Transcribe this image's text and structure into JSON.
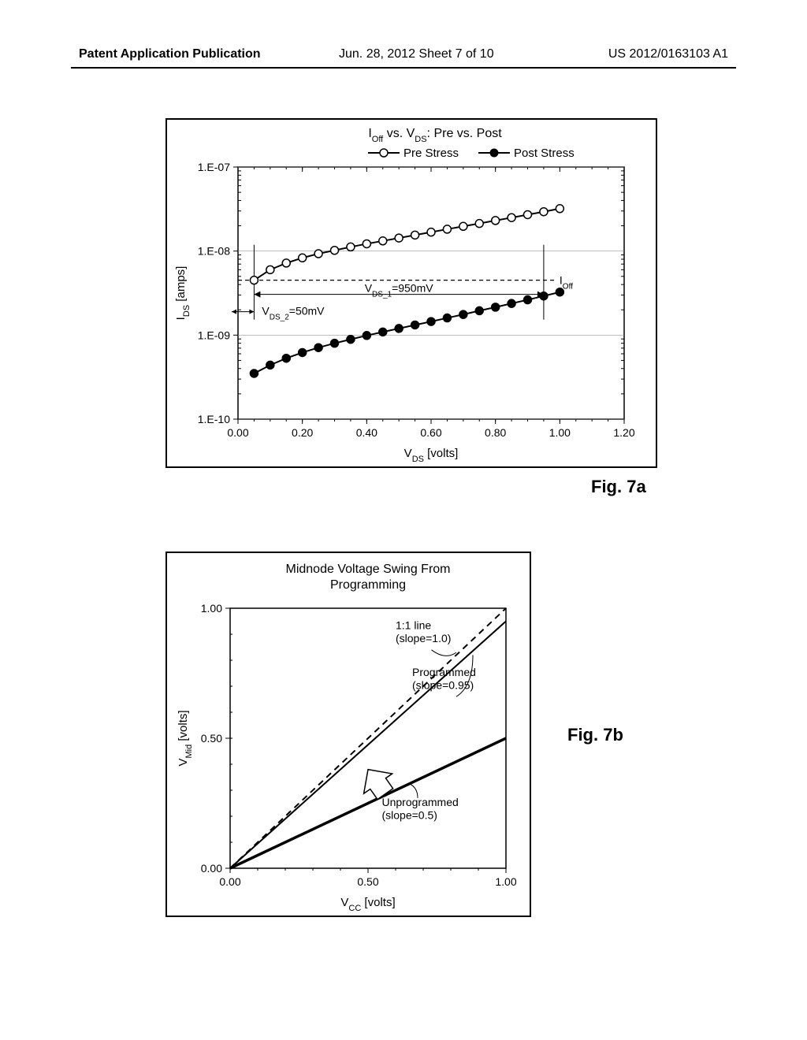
{
  "header": {
    "left": "Patent Application Publication",
    "center": "Jun. 28, 2012  Sheet 7 of 10",
    "right": "US 2012/0163103 A1"
  },
  "fig7a": {
    "label": "Fig. 7a",
    "title": "I_Off vs. V_DS: Pre vs. Post",
    "legend_pre": "Pre Stress",
    "legend_post": "Post Stress",
    "xlabel": "V_DS [volts]",
    "ylabel": "I_DS [amps]",
    "xlim": [
      0,
      1.2
    ],
    "xticks": [
      0.0,
      0.2,
      0.4,
      0.6,
      0.8,
      1.0,
      1.2
    ],
    "yticks": [
      "1.E-10",
      "1.E-09",
      "1.E-08",
      "1.E-07"
    ],
    "ylim_log": [
      -10,
      -7
    ],
    "annotation_ioff": "I_Off",
    "annotation_vds1": "V_DS_1=950mV",
    "annotation_vds2": "V_DS_2=50mV",
    "pre_stress_data": [
      [
        0.05,
        4.5e-09
      ],
      [
        0.1,
        6e-09
      ],
      [
        0.15,
        7.2e-09
      ],
      [
        0.2,
        8.3e-09
      ],
      [
        0.25,
        9.3e-09
      ],
      [
        0.3,
        1.02e-08
      ],
      [
        0.35,
        1.12e-08
      ],
      [
        0.4,
        1.22e-08
      ],
      [
        0.45,
        1.32e-08
      ],
      [
        0.5,
        1.43e-08
      ],
      [
        0.55,
        1.55e-08
      ],
      [
        0.6,
        1.68e-08
      ],
      [
        0.65,
        1.82e-08
      ],
      [
        0.7,
        1.97e-08
      ],
      [
        0.75,
        2.13e-08
      ],
      [
        0.8,
        2.31e-08
      ],
      [
        0.85,
        2.5e-08
      ],
      [
        0.9,
        2.71e-08
      ],
      [
        0.95,
        2.94e-08
      ],
      [
        1.0,
        3.2e-08
      ]
    ],
    "post_stress_data": [
      [
        0.05,
        3.5e-10
      ],
      [
        0.1,
        4.4e-10
      ],
      [
        0.15,
        5.3e-10
      ],
      [
        0.2,
        6.2e-10
      ],
      [
        0.25,
        7.1e-10
      ],
      [
        0.3,
        8e-10
      ],
      [
        0.35,
        8.9e-10
      ],
      [
        0.4,
        9.9e-10
      ],
      [
        0.45,
        1.09e-09
      ],
      [
        0.5,
        1.2e-09
      ],
      [
        0.55,
        1.32e-09
      ],
      [
        0.6,
        1.45e-09
      ],
      [
        0.65,
        1.6e-09
      ],
      [
        0.7,
        1.76e-09
      ],
      [
        0.75,
        1.95e-09
      ],
      [
        0.8,
        2.15e-09
      ],
      [
        0.85,
        2.38e-09
      ],
      [
        0.9,
        2.63e-09
      ],
      [
        0.95,
        2.92e-09
      ],
      [
        1.0,
        3.25e-09
      ]
    ],
    "ioff_level": 4.5e-09,
    "line_color": "#000000",
    "grid_color": "#808080",
    "marker_size": 5,
    "background_color": "#ffffff",
    "axis_fontsize": 14,
    "title_fontsize": 16
  },
  "fig7b": {
    "label": "Fig. 7b",
    "title": "Midnode Voltage Swing From Programming",
    "xlabel": "V_CC [volts]",
    "ylabel": "V_Mid [volts]",
    "xlim": [
      0,
      1.0
    ],
    "ylim": [
      0,
      1.0
    ],
    "xticks": [
      0.0,
      0.5,
      1.0
    ],
    "yticks": [
      0.0,
      0.5,
      1.0
    ],
    "line_unity": {
      "slope": 1.0,
      "label": "1:1 line\n(slope=1.0)",
      "style": "dashed"
    },
    "line_programmed": {
      "slope": 0.95,
      "label": "Programmed\n(slope=0.95)",
      "style": "solid",
      "width": 2
    },
    "line_unprogrammed": {
      "slope": 0.5,
      "label": "Unprogrammed\n(slope=0.5)",
      "style": "solid",
      "width": 3
    },
    "annotation_unity": "1:1 line",
    "annotation_unity2": "(slope=1.0)",
    "annotation_prog": "Programmed",
    "annotation_prog2": "(slope=0.95)",
    "annotation_unprog": "Unprogrammed",
    "annotation_unprog2": "(slope=0.5)",
    "line_color": "#000000",
    "background_color": "#ffffff",
    "axis_fontsize": 14,
    "title_fontsize": 16
  }
}
